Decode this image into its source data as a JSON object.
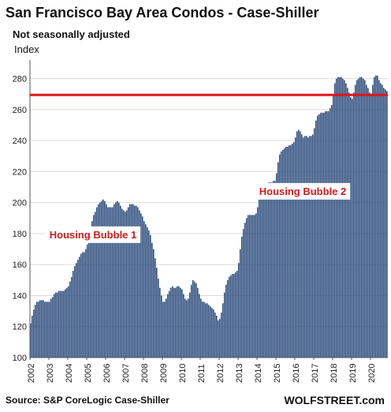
{
  "chart_data": {
    "type": "bar",
    "title": "San Francisco Bay Area Condos - Case-Shiller",
    "subtitle": "Not seasonally adjusted",
    "ylabel": "Index",
    "xlabel": "",
    "ylim": [
      100,
      290
    ],
    "yticks": [
      100,
      120,
      140,
      160,
      180,
      200,
      220,
      240,
      260,
      280
    ],
    "x_start": "2002-01",
    "x_end": "2020-11",
    "xtick_labels": [
      "2002",
      "2003",
      "2004",
      "2005",
      "2006",
      "2007",
      "2008",
      "2009",
      "2010",
      "2011",
      "2012",
      "2013",
      "2014",
      "2015",
      "2016",
      "2017",
      "2018",
      "2019",
      "2020"
    ],
    "bar_color": "#2b4a7b",
    "reference_line": {
      "value": 269.5,
      "color": "#e0161b"
    },
    "annotations": [
      {
        "text": "Housing Bubble 1",
        "x": "2005-05",
        "y": 177
      },
      {
        "text": "Housing Bubble 2",
        "x": "2016-06",
        "y": 205
      }
    ],
    "grid": true,
    "values": [
      122,
      127,
      131,
      134,
      136,
      136,
      137,
      137,
      137,
      136,
      136,
      136,
      136,
      138,
      139,
      141,
      142,
      142,
      143,
      143,
      143,
      143,
      144,
      145,
      146,
      149,
      152,
      156,
      159,
      161,
      163,
      165,
      167,
      168,
      168,
      170,
      173,
      178,
      183,
      188,
      192,
      194,
      197,
      199,
      200,
      201,
      202,
      201,
      199,
      197,
      197,
      197,
      197,
      199,
      200,
      201,
      200,
      198,
      196,
      195,
      194,
      195,
      197,
      199,
      199,
      199,
      198,
      198,
      197,
      195,
      193,
      191,
      188,
      186,
      184,
      182,
      179,
      174,
      170,
      164,
      158,
      151,
      145,
      140,
      136,
      136,
      138,
      141,
      143,
      145,
      146,
      145,
      145,
      146,
      146,
      145,
      144,
      141,
      138,
      137,
      138,
      142,
      147,
      150,
      149,
      148,
      145,
      141,
      138,
      136,
      136,
      135,
      135,
      134,
      133,
      132,
      131,
      129,
      127,
      124,
      125,
      129,
      135,
      142,
      147,
      150,
      152,
      153,
      154,
      154,
      155,
      156,
      161,
      170,
      178,
      183,
      187,
      190,
      192,
      192,
      192,
      192,
      192,
      193,
      197,
      202,
      207,
      210,
      212,
      212,
      212,
      213,
      213,
      213,
      214,
      214,
      219,
      226,
      231,
      233,
      234,
      235,
      236,
      236,
      237,
      237,
      238,
      239,
      242,
      246,
      247,
      246,
      244,
      242,
      243,
      243,
      242,
      243,
      243,
      244,
      248,
      253,
      256,
      257,
      258,
      258,
      258,
      259,
      259,
      259,
      261,
      263,
      270,
      277,
      280,
      281,
      281,
      281,
      280,
      279,
      277,
      274,
      271,
      268,
      267,
      271,
      276,
      279,
      280,
      281,
      281,
      280,
      279,
      276,
      274,
      271,
      269,
      276,
      281,
      282,
      282,
      279,
      277,
      276,
      274,
      273,
      272
    ]
  },
  "footer": {
    "source": "Source: S&P CoreLogic Case-Shiller",
    "brand": "WOLFSTREET.com"
  }
}
